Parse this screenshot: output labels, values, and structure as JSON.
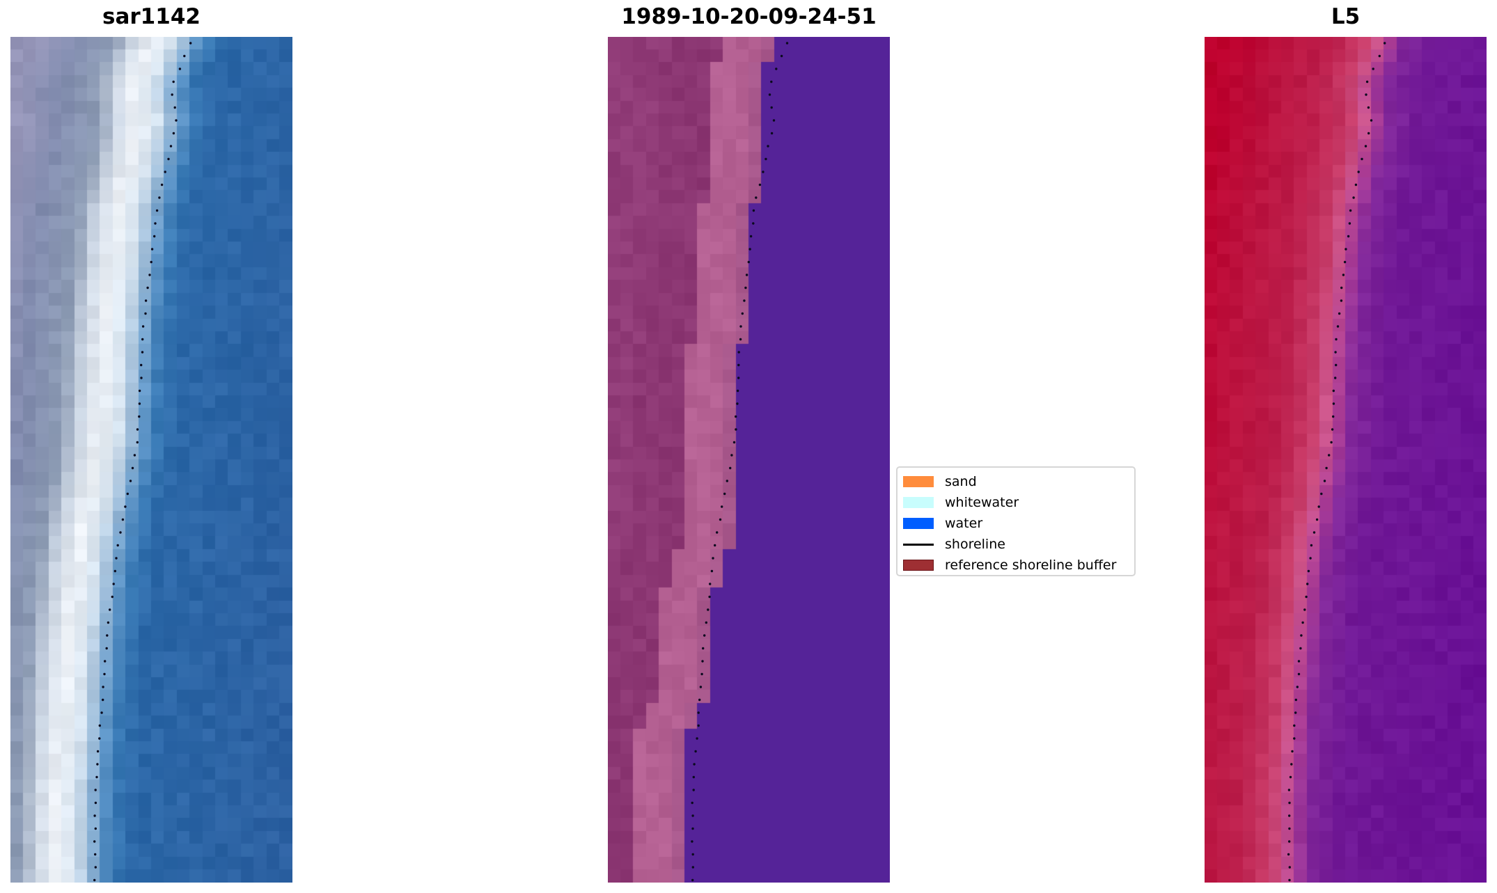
{
  "panels": [
    {
      "title": "sar1142",
      "kind": "rgb"
    },
    {
      "title": "1989-10-20-09-24-51",
      "kind": "classified"
    },
    {
      "title": "L5",
      "kind": "index"
    }
  ],
  "legend": {
    "items": [
      {
        "label": "sand",
        "type": "patch",
        "color": "#ff8c3c"
      },
      {
        "label": "whitewater",
        "type": "patch",
        "color": "#c8fdfd"
      },
      {
        "label": "water",
        "type": "patch",
        "color": "#005eff"
      },
      {
        "label": "shoreline",
        "type": "line",
        "color": "#000000"
      },
      {
        "label": "reference shoreline buffer",
        "type": "patch",
        "color": "#9e2f33"
      }
    ]
  }
}
